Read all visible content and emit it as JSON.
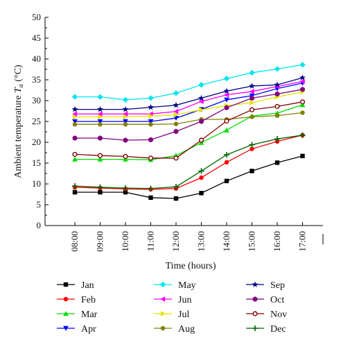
{
  "chart_data": {
    "type": "line",
    "xlabel": "Time (hours)",
    "ylabel_main": "Ambient temperature ",
    "ylabel_symbol": "T",
    "ylabel_subscript": "a",
    "ylabel_unit": " (°C)",
    "ylim": [
      0,
      50
    ],
    "yticks": [
      0,
      5,
      10,
      15,
      20,
      25,
      30,
      35,
      40,
      45,
      50
    ],
    "categories": [
      "08:00",
      "09:00",
      "10:00",
      "11:00",
      "12:00",
      "13:00",
      "14:00",
      "15:00",
      "16:00",
      "17:00"
    ],
    "legend_placement": "bottom",
    "grid": false,
    "series": [
      {
        "name": "Jan",
        "color": "#000000",
        "marker": "square",
        "values": [
          8.0,
          8.0,
          8.0,
          6.7,
          6.5,
          7.8,
          10.7,
          13.1,
          15.1,
          16.7
        ]
      },
      {
        "name": "Feb",
        "color": "#ff0000",
        "marker": "circle",
        "values": [
          9.2,
          9.0,
          8.8,
          8.7,
          8.9,
          11.5,
          15.2,
          18.4,
          20.2,
          21.7
        ]
      },
      {
        "name": "Mar",
        "color": "#00dd00",
        "marker": "triangle-up",
        "values": [
          15.9,
          15.9,
          15.9,
          15.8,
          16.8,
          19.9,
          22.9,
          26.3,
          27.0,
          29.0
        ]
      },
      {
        "name": "Apr",
        "color": "#0000ff",
        "marker": "triangle-down",
        "values": [
          25.0,
          25.0,
          25.0,
          25.0,
          25.8,
          27.9,
          30.2,
          31.2,
          32.9,
          34.2
        ]
      },
      {
        "name": "May",
        "color": "#00e5ee",
        "marker": "diamond",
        "values": [
          30.9,
          30.9,
          30.2,
          30.6,
          31.8,
          33.8,
          35.3,
          36.7,
          37.6,
          38.6
        ]
      },
      {
        "name": "Jun",
        "color": "#ff00ff",
        "marker": "triangle-left",
        "values": [
          26.8,
          26.8,
          26.8,
          26.8,
          27.4,
          29.8,
          31.4,
          32.2,
          33.4,
          34.6
        ]
      },
      {
        "name": "Jul",
        "color": "#e5e500",
        "marker": "triangle-right",
        "values": [
          26.1,
          26.1,
          26.1,
          26.3,
          26.6,
          27.8,
          28.8,
          29.5,
          30.9,
          32.1
        ]
      },
      {
        "name": "Aug",
        "color": "#808000",
        "marker": "circle",
        "values": [
          24.3,
          24.3,
          24.3,
          24.3,
          24.4,
          25.5,
          25.5,
          26.1,
          26.4,
          27.1
        ]
      },
      {
        "name": "Sep",
        "color": "#000080",
        "marker": "star",
        "values": [
          27.9,
          27.9,
          27.9,
          28.4,
          28.9,
          30.6,
          32.3,
          33.5,
          33.8,
          35.5
        ]
      },
      {
        "name": "Oct",
        "color": "#800080",
        "marker": "hexagon",
        "values": [
          21.0,
          21.0,
          20.5,
          20.6,
          22.6,
          25.0,
          28.3,
          30.6,
          31.6,
          32.7
        ]
      },
      {
        "name": "Nov",
        "color": "#800000",
        "marker": "circle-open",
        "values": [
          17.1,
          16.8,
          16.6,
          16.2,
          16.2,
          20.5,
          25.1,
          27.8,
          28.6,
          29.7
        ]
      },
      {
        "name": "Dec",
        "color": "#006400",
        "marker": "plus",
        "values": [
          9.5,
          9.2,
          9.0,
          8.9,
          9.3,
          13.1,
          17.0,
          19.4,
          20.8,
          21.7
        ]
      }
    ]
  }
}
